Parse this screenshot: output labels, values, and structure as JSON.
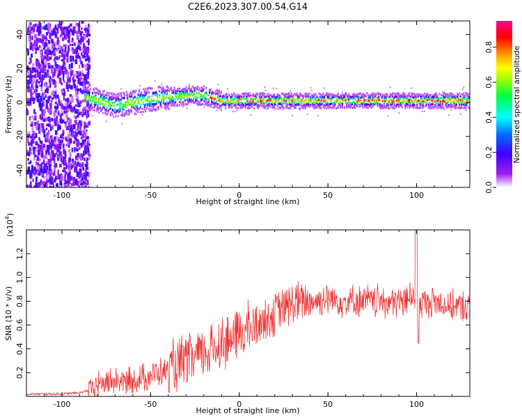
{
  "title": "C2E6.2023.307.00.54.G14",
  "chart_data": [
    {
      "type": "heatmap",
      "xlabel": "Height of straight line (km)",
      "ylabel": "Frequency (Hz)",
      "xlim": [
        -120,
        130
      ],
      "ylim": [
        -50,
        48
      ],
      "xticks": [
        -100,
        -50,
        0,
        50,
        100
      ],
      "yticks": [
        -40,
        -20,
        0,
        20,
        40
      ],
      "colorbar": {
        "label": "Normalized spectral amplitude",
        "range": [
          0,
          0.95
        ],
        "ticks": [
          "0.0",
          "0.2",
          "0.4",
          "0.6",
          "0.8"
        ]
      },
      "ridge": {
        "x": [
          -88,
          -80,
          -70,
          -60,
          -50,
          -40,
          -30,
          -20,
          -10,
          0,
          20,
          40,
          60,
          80,
          100,
          130
        ],
        "frequency": [
          3,
          1,
          -2,
          0,
          2,
          3,
          4,
          4,
          1,
          1,
          1,
          1,
          1,
          1,
          1,
          1
        ]
      }
    },
    {
      "type": "line",
      "xlabel": "Height of straight line (km)",
      "ylabel": "SNR (10 * v/v)",
      "yscale_label": "(x10",
      "yscale_exp": "4",
      "yscale_close": ")",
      "xlim": [
        -120,
        130
      ],
      "ylim": [
        0,
        1.4
      ],
      "xticks": [
        -100,
        -50,
        0,
        50,
        100
      ],
      "yticks": [
        "0.2",
        "0.4",
        "0.6",
        "0.8",
        "1.0",
        "1.2"
      ],
      "series": [
        {
          "color": "#ee3333",
          "x": [
            -120,
            -100,
            -90,
            -85,
            -80,
            -70,
            -60,
            -50,
            -40,
            -30,
            -20,
            -10,
            0,
            10,
            20,
            30,
            40,
            50,
            60,
            70,
            80,
            90,
            95,
            98,
            100,
            102,
            105,
            110,
            120,
            130
          ],
          "y": [
            0.02,
            0.02,
            0.03,
            0.05,
            0.1,
            0.13,
            0.12,
            0.18,
            0.22,
            0.28,
            0.36,
            0.45,
            0.52,
            0.6,
            0.7,
            0.78,
            0.8,
            0.82,
            0.8,
            0.8,
            0.8,
            0.79,
            0.8,
            0.9,
            0.75,
            0.8,
            0.78,
            0.8,
            0.76,
            0.75
          ]
        }
      ]
    }
  ]
}
